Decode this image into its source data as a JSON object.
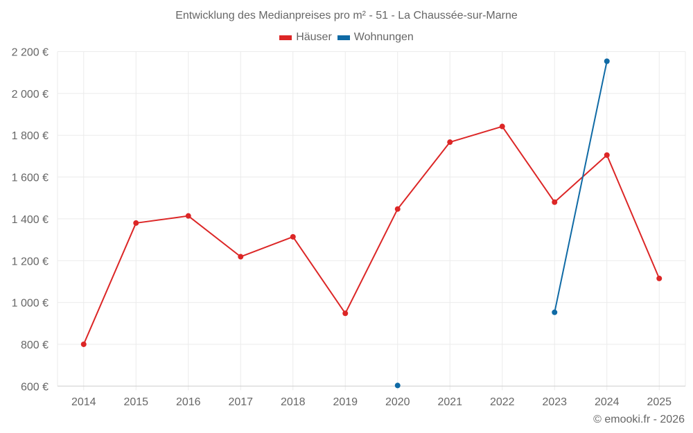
{
  "chart_data": {
    "type": "line",
    "title": "Entwicklung des Medianpreises pro m² - 51 - La Chaussée-sur-Marne",
    "xlabel": "",
    "ylabel": "",
    "categories": [
      "2014",
      "2015",
      "2016",
      "2017",
      "2018",
      "2019",
      "2020",
      "2021",
      "2022",
      "2023",
      "2024",
      "2025"
    ],
    "ylim": [
      600,
      2200
    ],
    "yticks": [
      600,
      800,
      1000,
      1200,
      1400,
      1600,
      1800,
      2000,
      2200
    ],
    "ytick_labels": [
      "600 €",
      "800 €",
      "1 000 €",
      "1 200 €",
      "1 400 €",
      "1 600 €",
      "1 800 €",
      "2 000 €",
      "2 200 €"
    ],
    "grid": true,
    "legend_position": "top-center",
    "series": [
      {
        "name": "Häuser",
        "color": "#dc2626",
        "values": [
          800,
          1380,
          1414,
          1219,
          1314,
          948,
          1447,
          1767,
          1842,
          1480,
          1705,
          1115
        ]
      },
      {
        "name": "Wohnungen",
        "color": "#0f6aa5",
        "values": [
          null,
          null,
          null,
          null,
          null,
          null,
          603,
          null,
          null,
          953,
          2154,
          null
        ]
      }
    ],
    "credit": "© emooki.fr - 2026"
  }
}
